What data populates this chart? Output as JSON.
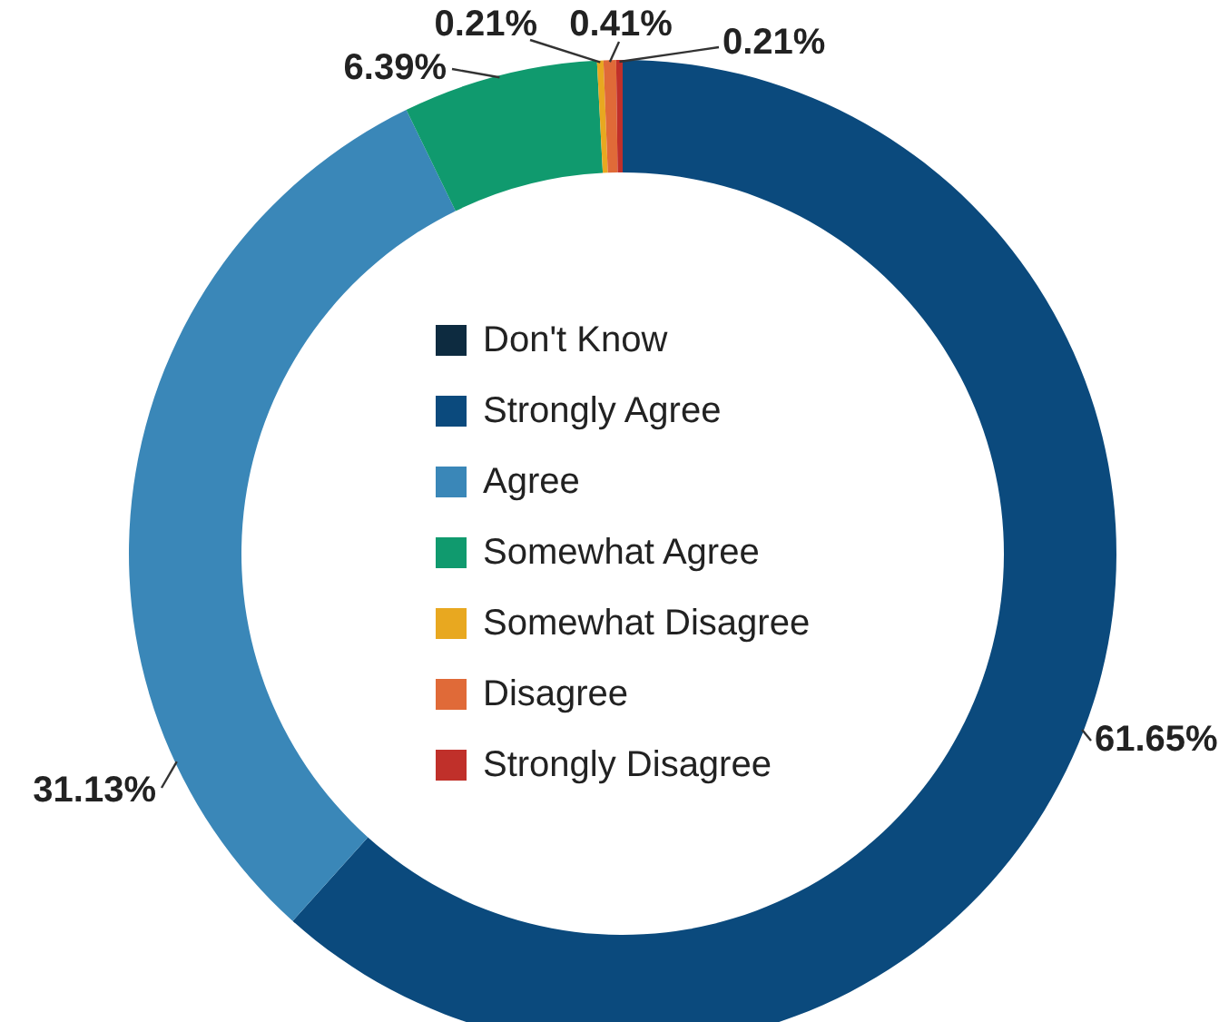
{
  "chart_data": {
    "type": "donut",
    "categories": [
      "Don't Know",
      "Strongly Agree",
      "Agree",
      "Somewhat Agree",
      "Somewhat Disagree",
      "Disagree",
      "Strongly Disagree"
    ],
    "values": [
      0,
      61.65,
      31.13,
      6.39,
      0.21,
      0.41,
      0.21
    ],
    "colors": [
      "#0d2b40",
      "#0b4a7d",
      "#3a87b8",
      "#109a6e",
      "#e8a820",
      "#e06a38",
      "#c0302a"
    ],
    "value_labels": [
      null,
      "61.65%",
      "31.13%",
      "6.39%",
      "0.21%",
      "0.41%",
      "0.21%"
    ],
    "legend": "center"
  }
}
